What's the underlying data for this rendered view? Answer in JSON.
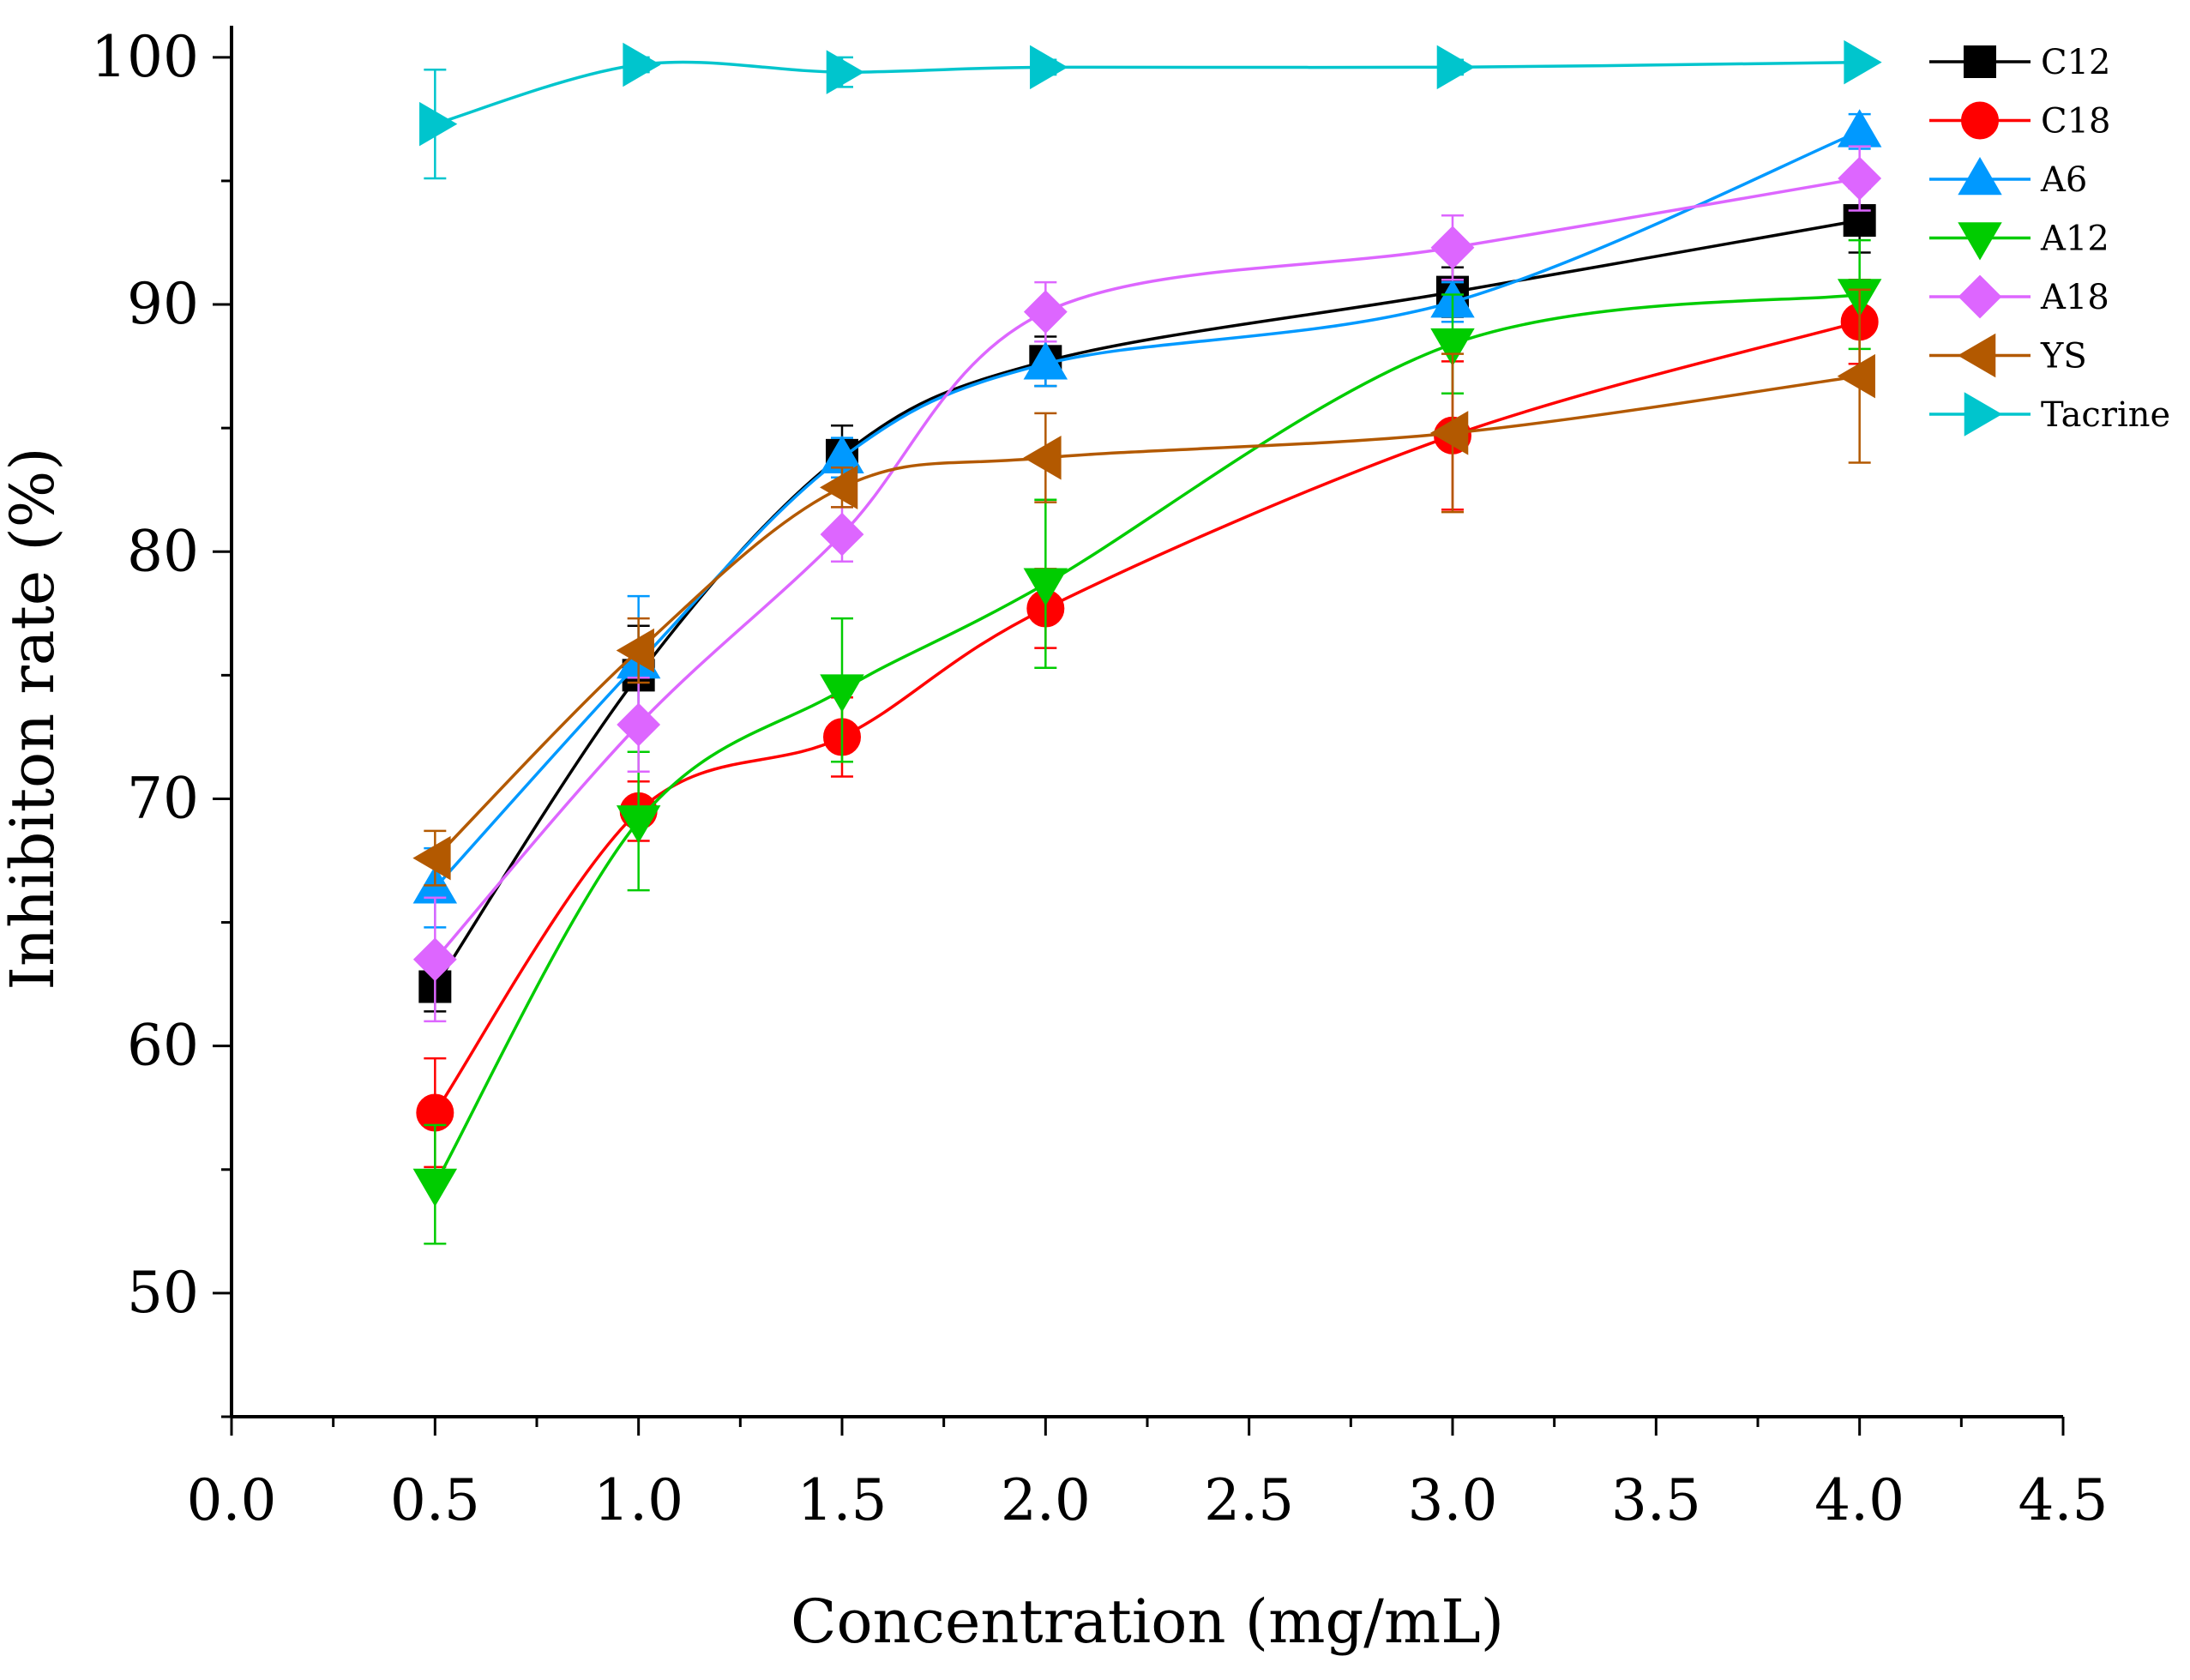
{
  "chart_data": {
    "type": "line",
    "title": "",
    "xlabel": "Concentration (mg/mL)",
    "ylabel": "Inhibiton rate (%)",
    "xlim": [
      0.0,
      4.5
    ],
    "ylim": [
      45,
      101
    ],
    "x_ticks": [
      0.0,
      0.5,
      1.0,
      1.5,
      2.0,
      2.5,
      3.0,
      3.5,
      4.0,
      4.5
    ],
    "x_tick_labels": [
      "0.0",
      "0.5",
      "1.0",
      "1.5",
      "2.0",
      "2.5",
      "3.0",
      "3.5",
      "4.0",
      "4.5"
    ],
    "y_ticks": [
      50,
      60,
      70,
      80,
      90,
      100
    ],
    "y_tick_labels": [
      "50",
      "60",
      "70",
      "80",
      "90",
      "100"
    ],
    "grid": false,
    "legend_position": "top-right",
    "x": [
      0.5,
      1.0,
      1.5,
      2.0,
      3.0,
      4.0
    ],
    "series": [
      {
        "name": "C12",
        "color": "#000000",
        "marker": "square",
        "values": [
          62.4,
          75.0,
          83.9,
          87.7,
          90.5,
          93.4
        ],
        "errors": [
          1.0,
          2.0,
          1.2,
          1.0,
          1.0,
          1.3
        ]
      },
      {
        "name": "C18",
        "color": "#ff0000",
        "marker": "circle",
        "values": [
          57.3,
          69.5,
          72.5,
          77.7,
          84.7,
          89.3
        ],
        "errors": [
          2.2,
          1.2,
          1.6,
          1.6,
          3.0,
          1.7
        ]
      },
      {
        "name": "A6",
        "color": "#0099ff",
        "marker": "triangle-up",
        "values": [
          66.4,
          75.5,
          83.8,
          87.6,
          90.1,
          97.0
        ],
        "errors": [
          1.6,
          2.7,
          0.8,
          0.9,
          0.8,
          0.7
        ]
      },
      {
        "name": "A12",
        "color": "#00cc00",
        "marker": "triangle-down",
        "values": [
          54.4,
          69.1,
          74.4,
          78.7,
          88.4,
          90.4
        ],
        "errors": [
          2.4,
          2.8,
          2.9,
          3.4,
          2.0,
          2.2
        ]
      },
      {
        "name": "A18",
        "color": "#dd66ff",
        "marker": "diamond",
        "values": [
          63.5,
          73.0,
          80.7,
          89.7,
          92.3,
          95.1
        ],
        "errors": [
          2.5,
          1.9,
          1.1,
          1.2,
          1.3,
          1.3
        ]
      },
      {
        "name": "YS",
        "color": "#b35900",
        "marker": "triangle-left",
        "values": [
          67.6,
          76.0,
          82.6,
          83.8,
          84.8,
          87.1
        ],
        "errors": [
          1.1,
          1.3,
          0.8,
          1.8,
          3.2,
          3.5
        ]
      },
      {
        "name": "Tacrine",
        "color": "#00c5cd",
        "marker": "triangle-right",
        "values": [
          97.3,
          99.7,
          99.4,
          99.6,
          99.6,
          99.8
        ],
        "errors": [
          2.2,
          0.3,
          0.6,
          0.3,
          0.3,
          0.2
        ]
      }
    ]
  }
}
